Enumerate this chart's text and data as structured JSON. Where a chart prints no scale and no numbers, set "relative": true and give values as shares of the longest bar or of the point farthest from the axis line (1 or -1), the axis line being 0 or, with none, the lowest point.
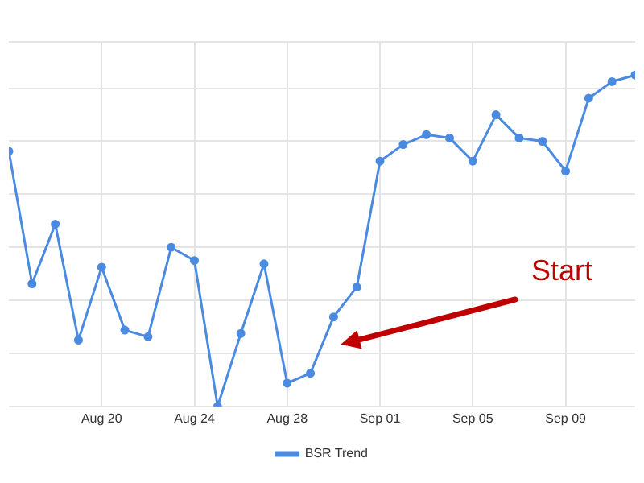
{
  "chart_data": {
    "type": "line",
    "relative": true,
    "x": [
      "--08-16",
      "--08-17",
      "--08-18",
      "--08-19",
      "--08-20",
      "--08-21",
      "--08-22",
      "--08-23",
      "--08-24",
      "--08-25",
      "--08-26",
      "--08-27",
      "--08-28",
      "--08-29",
      "--08-30",
      "--08-31",
      "--09-01",
      "--09-02",
      "--09-03",
      "--09-04",
      "--09-05",
      "--09-06",
      "--09-07",
      "--09-08",
      "--09-09",
      "--09-10",
      "--09-11",
      "--09-12"
    ],
    "xlim": [
      "--08-16",
      "--09-12"
    ],
    "xticks": [
      {
        "value": "--08-20",
        "label": "Aug 20"
      },
      {
        "value": "--08-24",
        "label": "Aug 24"
      },
      {
        "value": "--08-28",
        "label": "Aug 28"
      },
      {
        "value": "--09-01",
        "label": "Sep 01"
      },
      {
        "value": "--09-05",
        "label": "Sep 05"
      },
      {
        "value": "--09-09",
        "label": "Sep 09"
      }
    ],
    "series": [
      {
        "name": "BSR Trend",
        "color": "#4a8ae0",
        "values": [
          0.77,
          0.37,
          0.55,
          0.2,
          0.42,
          0.23,
          0.21,
          0.48,
          0.44,
          0,
          0.22,
          0.43,
          0.07,
          0.1,
          0.27,
          0.36,
          0.74,
          0.79,
          0.82,
          0.81,
          0.74,
          0.88,
          0.81,
          0.8,
          0.71,
          0.93,
          0.98,
          1
        ]
      }
    ],
    "marker": "circle",
    "line_style": "solid",
    "grid": true,
    "legend": "bottom",
    "annotations": [
      "Start"
    ]
  }
}
